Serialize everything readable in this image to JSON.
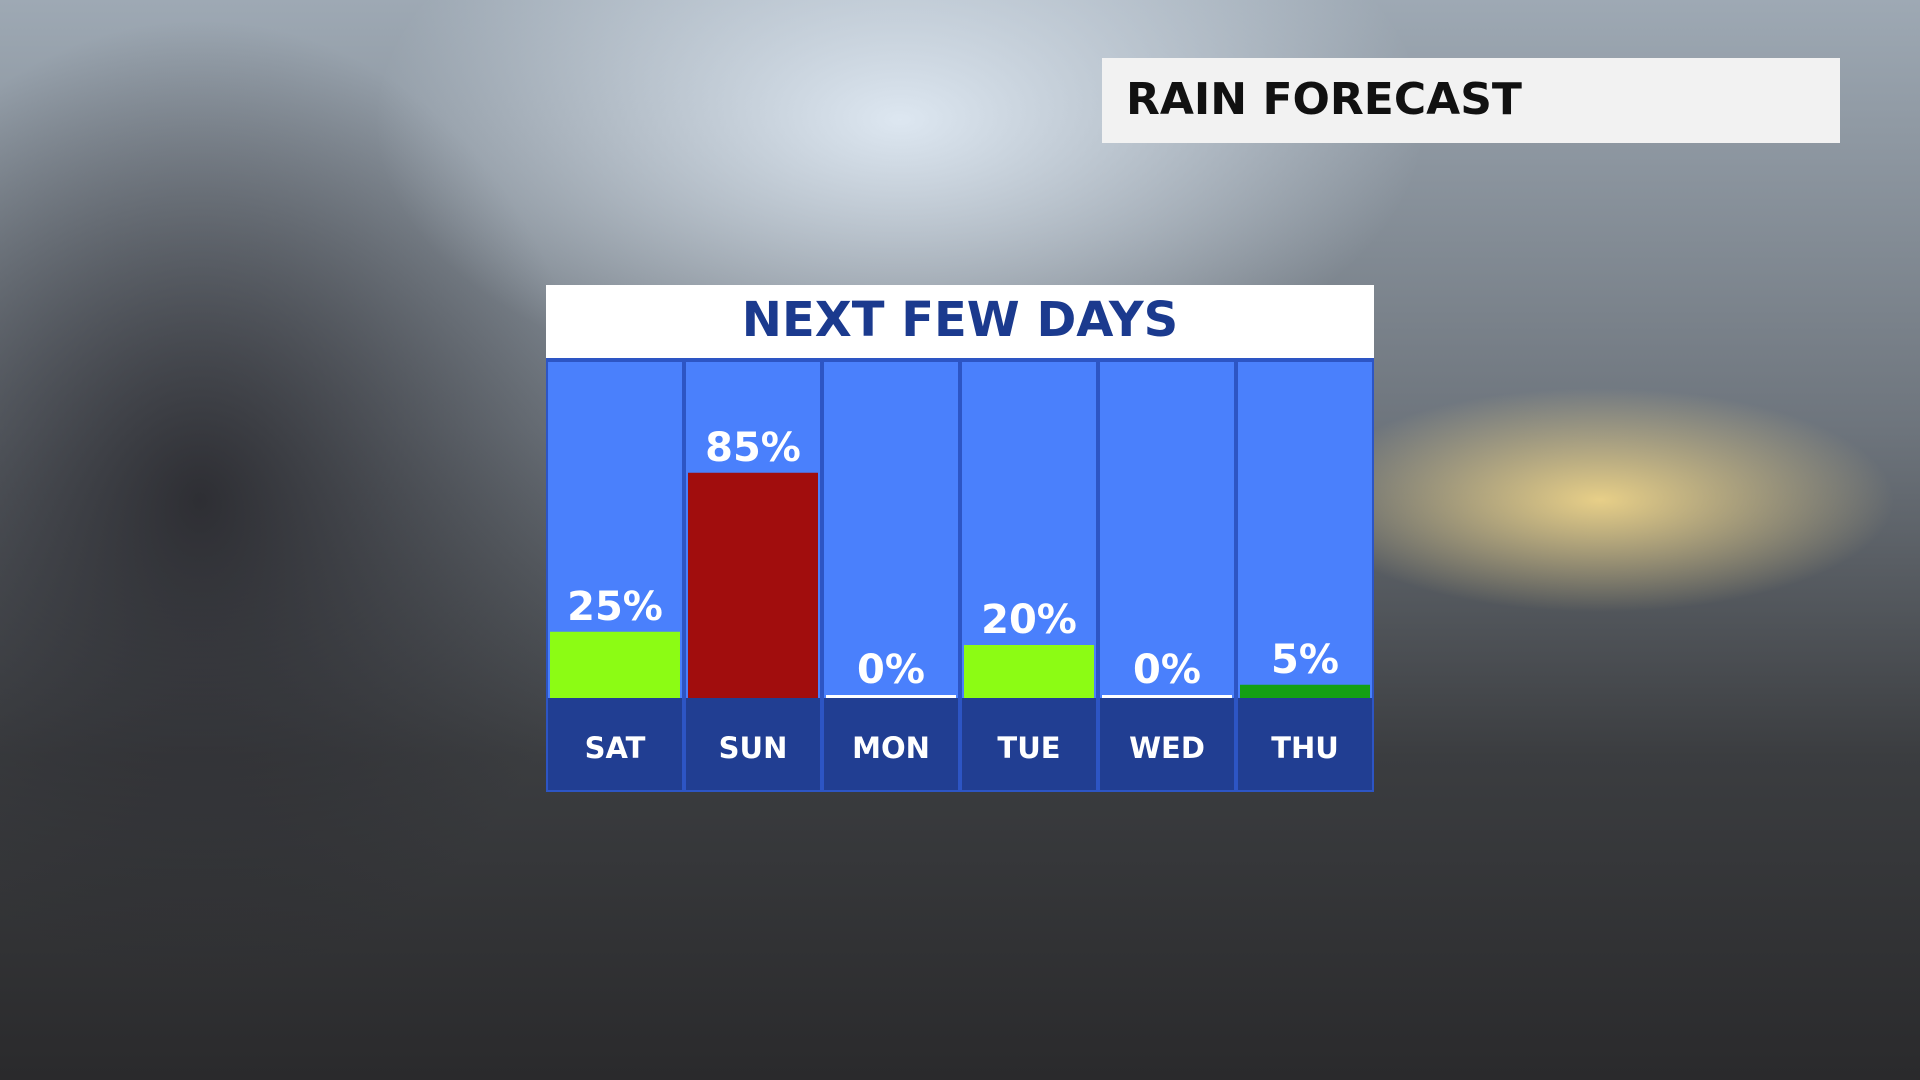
{
  "header": {
    "title": "RAIN FORECAST"
  },
  "chart_data": {
    "type": "bar",
    "title": "NEXT FEW DAYS",
    "categories": [
      "SAT",
      "SUN",
      "MON",
      "TUE",
      "WED",
      "THU"
    ],
    "values": [
      25,
      85,
      0,
      20,
      0,
      5
    ],
    "value_labels": [
      "25%",
      "85%",
      "0%",
      "20%",
      "0%",
      "5%"
    ],
    "colors": [
      "#8cfc14",
      "#a10d0d",
      "#ffffff",
      "#8cfc14",
      "#ffffff",
      "#14a014"
    ]
  }
}
